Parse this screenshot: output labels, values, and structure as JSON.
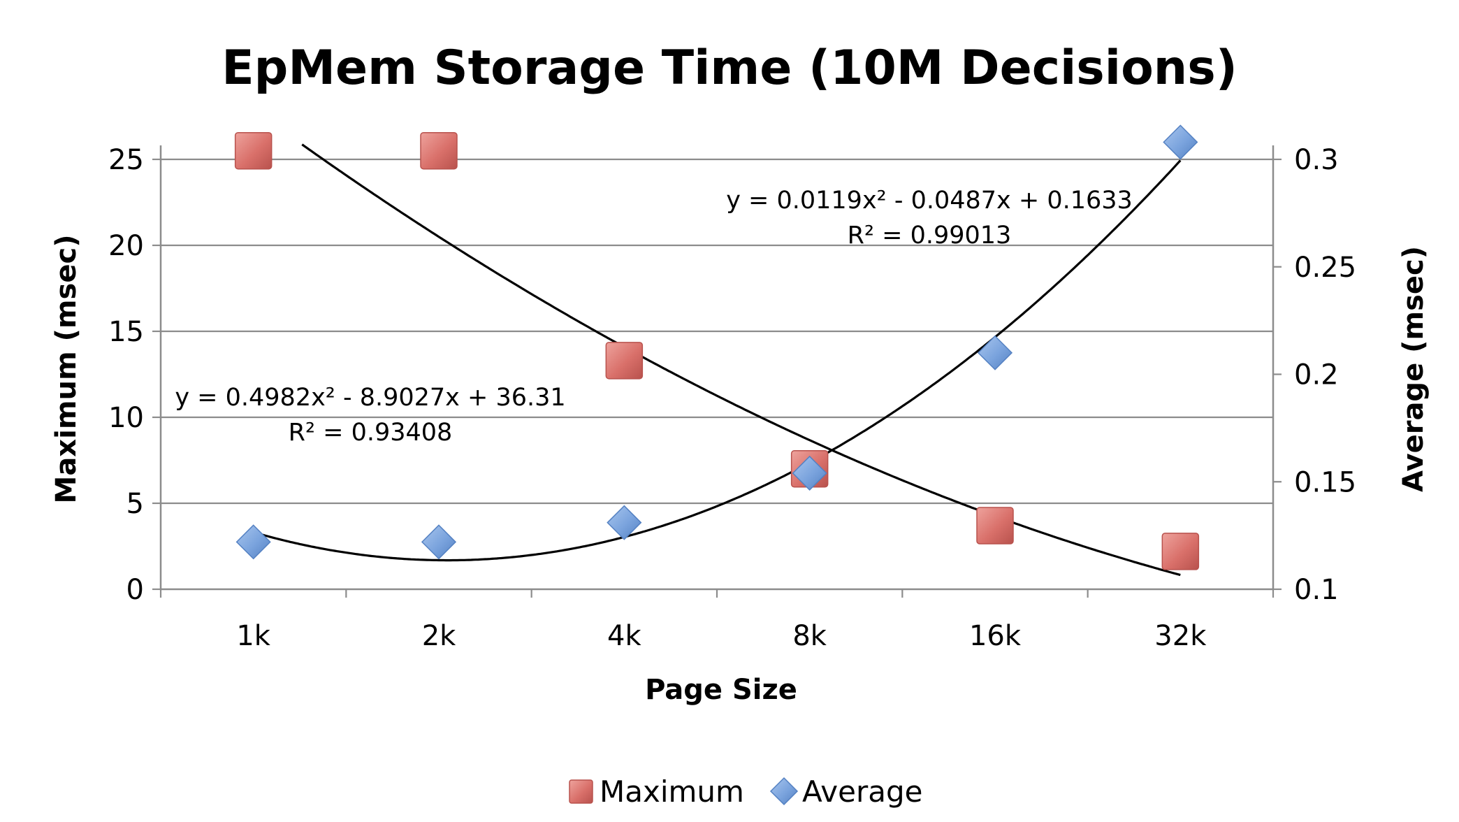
{
  "chart_data": {
    "type": "scatter",
    "title": "EpMem Storage Time (10M Decisions)",
    "xlabel": "Page Size",
    "categories": [
      "1k",
      "2k",
      "4k",
      "8k",
      "16k",
      "32k"
    ],
    "y_left": {
      "label": "Maximum (msec)",
      "range": [
        0,
        25
      ],
      "ticks": [
        "0",
        "5",
        "10",
        "15",
        "20",
        "25"
      ]
    },
    "y_right": {
      "label": "Average (msec)",
      "range": [
        0.1,
        0.3
      ],
      "ticks": [
        "0.1",
        "0.15",
        "0.2",
        "0.25",
        "0.3"
      ]
    },
    "grid": true,
    "legend_position": "bottom",
    "series": [
      {
        "name": "Maximum",
        "axis": "left",
        "marker": "square",
        "color": "#d9706a",
        "values": [
          25.5,
          25.5,
          13.3,
          7.0,
          3.7,
          2.2
        ],
        "trendline": {
          "equation": "y = 0.4982x² - 8.9027x + 36.31",
          "r2": "R² = 0.93408",
          "coefficients": [
            0.4982,
            -8.9027,
            36.31
          ]
        }
      },
      {
        "name": "Average",
        "axis": "right",
        "marker": "diamond",
        "color": "#7aa3dd",
        "values": [
          0.122,
          0.122,
          0.131,
          0.154,
          0.21,
          0.308
        ],
        "trendline": {
          "equation": "y = 0.0119x² - 0.0487x + 0.1633",
          "r2": "R² = 0.99013",
          "coefficients": [
            0.0119,
            -0.0487,
            0.1633
          ]
        }
      }
    ]
  }
}
